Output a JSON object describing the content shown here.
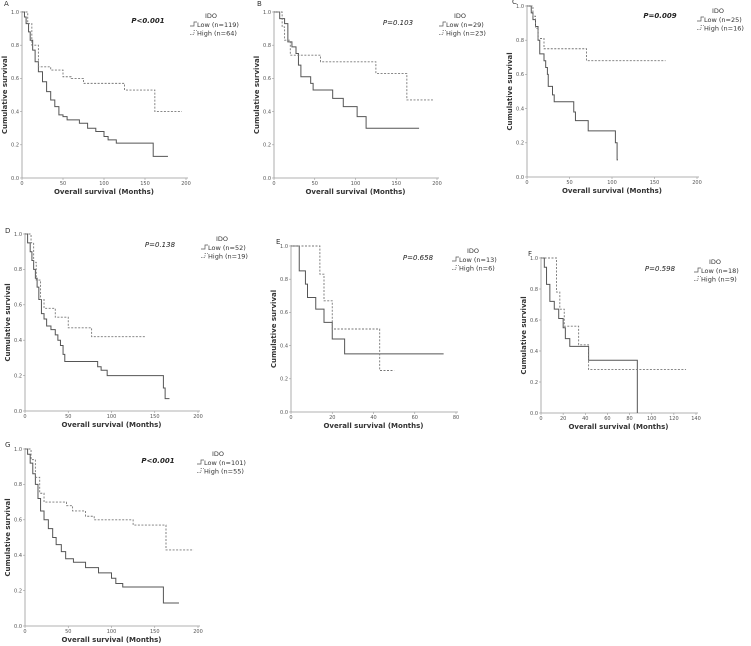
{
  "chart_data": [
    {
      "panel": "A",
      "type": "line",
      "step": true,
      "xlabel": "Overall survival (Months)",
      "ylabel": "Cumulative survival",
      "xlim": [
        0,
        200
      ],
      "ylim": [
        0,
        1
      ],
      "xticks": [
        0,
        50,
        100,
        150,
        200
      ],
      "yticks": [
        0.0,
        0.2,
        0.4,
        0.6,
        0.8,
        1.0
      ],
      "p_value": "P<0.001",
      "p_bold": true,
      "legend_title": "IDO",
      "series": [
        {
          "name": "Low (n=119)",
          "style": "solid",
          "points": [
            [
              0,
              1
            ],
            [
              3,
              0.97
            ],
            [
              5,
              0.93
            ],
            [
              8,
              0.88
            ],
            [
              10,
              0.83
            ],
            [
              13,
              0.77
            ],
            [
              16,
              0.7
            ],
            [
              20,
              0.64
            ],
            [
              25,
              0.58
            ],
            [
              30,
              0.52
            ],
            [
              35,
              0.47
            ],
            [
              40,
              0.43
            ],
            [
              45,
              0.38
            ],
            [
              50,
              0.37
            ],
            [
              55,
              0.35
            ],
            [
              70,
              0.33
            ],
            [
              80,
              0.3
            ],
            [
              90,
              0.28
            ],
            [
              100,
              0.25
            ],
            [
              105,
              0.23
            ],
            [
              115,
              0.21
            ],
            [
              160,
              0.13
            ],
            [
              178,
              0.13
            ]
          ]
        },
        {
          "name": "High (n=64)",
          "style": "dashed",
          "points": [
            [
              0,
              1
            ],
            [
              7,
              0.93
            ],
            [
              12,
              0.8
            ],
            [
              20,
              0.67
            ],
            [
              35,
              0.65
            ],
            [
              50,
              0.61
            ],
            [
              60,
              0.6
            ],
            [
              75,
              0.57
            ],
            [
              125,
              0.53
            ],
            [
              162,
              0.4
            ],
            [
              195,
              0.4
            ]
          ]
        }
      ]
    },
    {
      "panel": "B",
      "type": "line",
      "step": true,
      "xlabel": "Overall survival (Months)",
      "ylabel": "Cumulative survival",
      "xlim": [
        0,
        200
      ],
      "ylim": [
        0,
        1
      ],
      "xticks": [
        0,
        50,
        100,
        150,
        200
      ],
      "yticks": [
        0.0,
        0.2,
        0.4,
        0.6,
        0.8,
        1.0
      ],
      "p_value": "P=0.103",
      "p_bold": false,
      "legend_title": "IDO",
      "series": [
        {
          "name": "Low (n=29)",
          "style": "solid",
          "points": [
            [
              0,
              1
            ],
            [
              7,
              0.96
            ],
            [
              13,
              0.93
            ],
            [
              17,
              0.82
            ],
            [
              22,
              0.79
            ],
            [
              27,
              0.75
            ],
            [
              30,
              0.68
            ],
            [
              33,
              0.61
            ],
            [
              45,
              0.57
            ],
            [
              48,
              0.53
            ],
            [
              72,
              0.48
            ],
            [
              85,
              0.43
            ],
            [
              102,
              0.37
            ],
            [
              113,
              0.3
            ],
            [
              178,
              0.3
            ]
          ]
        },
        {
          "name": "High (n=23)",
          "style": "dashed",
          "points": [
            [
              0,
              1
            ],
            [
              10,
              0.91
            ],
            [
              13,
              0.83
            ],
            [
              20,
              0.74
            ],
            [
              57,
              0.7
            ],
            [
              125,
              0.63
            ],
            [
              163,
              0.47
            ],
            [
              195,
              0.47
            ]
          ]
        }
      ]
    },
    {
      "panel": "C",
      "type": "line",
      "step": true,
      "xlabel": "Overall survival (Months)",
      "ylabel": "Cumulative survival",
      "xlim": [
        0,
        200
      ],
      "ylim": [
        0,
        1
      ],
      "xticks": [
        0,
        50,
        100,
        150,
        200
      ],
      "yticks": [
        0.0,
        0.2,
        0.4,
        0.6,
        0.8,
        1.0
      ],
      "p_value": "P=0.009",
      "p_bold": true,
      "legend_title": "IDO",
      "series": [
        {
          "name": "Low (n=25)",
          "style": "solid",
          "points": [
            [
              0,
              1
            ],
            [
              5,
              0.96
            ],
            [
              7,
              0.92
            ],
            [
              10,
              0.88
            ],
            [
              13,
              0.8
            ],
            [
              15,
              0.72
            ],
            [
              20,
              0.68
            ],
            [
              22,
              0.64
            ],
            [
              24,
              0.6
            ],
            [
              25,
              0.53
            ],
            [
              30,
              0.48
            ],
            [
              32,
              0.44
            ],
            [
              55,
              0.38
            ],
            [
              57,
              0.33
            ],
            [
              72,
              0.27
            ],
            [
              104,
              0.2
            ],
            [
              106,
              0.1
            ],
            [
              107,
              0.1
            ]
          ]
        },
        {
          "name": "High (n=16)",
          "style": "dashed",
          "points": [
            [
              0,
              1
            ],
            [
              7,
              0.94
            ],
            [
              10,
              0.87
            ],
            [
              13,
              0.81
            ],
            [
              20,
              0.75
            ],
            [
              70,
              0.68
            ],
            [
              163,
              0.68
            ]
          ]
        }
      ]
    },
    {
      "panel": "D",
      "type": "line",
      "step": true,
      "xlabel": "Overall survival (Months)",
      "ylabel": "Cumulative survival",
      "xlim": [
        0,
        200
      ],
      "ylim": [
        0,
        1
      ],
      "xticks": [
        0,
        50,
        100,
        150,
        200
      ],
      "yticks": [
        0.0,
        0.2,
        0.4,
        0.6,
        0.8,
        1.0
      ],
      "p_value": "P=0.138",
      "p_bold": false,
      "legend_title": "IDO",
      "series": [
        {
          "name": "Low (n=52)",
          "style": "solid",
          "points": [
            [
              0,
              1
            ],
            [
              3,
              0.95
            ],
            [
              6,
              0.9
            ],
            [
              8,
              0.85
            ],
            [
              10,
              0.8
            ],
            [
              12,
              0.75
            ],
            [
              14,
              0.7
            ],
            [
              16,
              0.63
            ],
            [
              19,
              0.55
            ],
            [
              22,
              0.52
            ],
            [
              25,
              0.48
            ],
            [
              30,
              0.46
            ],
            [
              35,
              0.43
            ],
            [
              38,
              0.4
            ],
            [
              41,
              0.37
            ],
            [
              44,
              0.32
            ],
            [
              46,
              0.28
            ],
            [
              84,
              0.25
            ],
            [
              88,
              0.23
            ],
            [
              95,
              0.2
            ],
            [
              160,
              0.13
            ],
            [
              162,
              0.07
            ],
            [
              167,
              0.07
            ]
          ]
        },
        {
          "name": "High (n=19)",
          "style": "dashed",
          "points": [
            [
              0,
              1
            ],
            [
              7,
              0.95
            ],
            [
              10,
              0.84
            ],
            [
              13,
              0.74
            ],
            [
              18,
              0.63
            ],
            [
              22,
              0.58
            ],
            [
              35,
              0.53
            ],
            [
              50,
              0.47
            ],
            [
              77,
              0.42
            ],
            [
              140,
              0.42
            ]
          ]
        }
      ]
    },
    {
      "panel": "E",
      "type": "line",
      "step": true,
      "xlabel": "Overall survival (Months)",
      "ylabel": "Cumulative survival",
      "xlim": [
        0,
        80
      ],
      "ylim": [
        0,
        1
      ],
      "xticks": [
        0,
        20,
        40,
        60,
        80
      ],
      "yticks": [
        0.0,
        0.2,
        0.4,
        0.6,
        0.8,
        1.0
      ],
      "p_value": "P=0.658",
      "p_bold": false,
      "legend_title": "IDO",
      "series": [
        {
          "name": "Low (n=13)",
          "style": "solid",
          "points": [
            [
              0,
              1
            ],
            [
              4,
              0.85
            ],
            [
              7,
              0.77
            ],
            [
              8,
              0.69
            ],
            [
              12,
              0.62
            ],
            [
              16,
              0.54
            ],
            [
              20,
              0.44
            ],
            [
              26,
              0.35
            ],
            [
              74,
              0.35
            ]
          ]
        },
        {
          "name": "High (n=6)",
          "style": "dashed",
          "points": [
            [
              0,
              1
            ],
            [
              14,
              0.83
            ],
            [
              16,
              0.67
            ],
            [
              20,
              0.5
            ],
            [
              43,
              0.25
            ],
            [
              50,
              0.25
            ]
          ]
        }
      ]
    },
    {
      "panel": "F",
      "type": "line",
      "step": true,
      "xlabel": "Overall survival (Months)",
      "ylabel": "Cumulative survival",
      "xlim": [
        0,
        140
      ],
      "ylim": [
        0,
        1
      ],
      "xticks": [
        0,
        20,
        40,
        60,
        80,
        100,
        120,
        140
      ],
      "yticks": [
        0.0,
        0.2,
        0.4,
        0.6,
        0.8,
        1.0
      ],
      "p_value": "P=0.598",
      "p_bold": false,
      "legend_title": "IDO",
      "series": [
        {
          "name": "Low (n=18)",
          "style": "solid",
          "points": [
            [
              0,
              1
            ],
            [
              3,
              0.94
            ],
            [
              5,
              0.83
            ],
            [
              8,
              0.72
            ],
            [
              12,
              0.67
            ],
            [
              16,
              0.61
            ],
            [
              20,
              0.55
            ],
            [
              22,
              0.48
            ],
            [
              26,
              0.43
            ],
            [
              43,
              0.34
            ],
            [
              87,
              0
            ],
            [
              87,
              0
            ]
          ]
        },
        {
          "name": "High (n=9)",
          "style": "dashed",
          "points": [
            [
              0,
              1
            ],
            [
              14,
              0.78
            ],
            [
              17,
              0.67
            ],
            [
              21,
              0.56
            ],
            [
              34,
              0.44
            ],
            [
              43,
              0.28
            ],
            [
              131,
              0.28
            ]
          ]
        }
      ]
    },
    {
      "panel": "G",
      "type": "line",
      "step": true,
      "xlabel": "Overall survival (Months)",
      "ylabel": "Cumulative survival",
      "xlim": [
        0,
        200
      ],
      "ylim": [
        0,
        1
      ],
      "xticks": [
        0,
        50,
        100,
        150,
        200
      ],
      "yticks": [
        0.0,
        0.2,
        0.4,
        0.6,
        0.8,
        1.0
      ],
      "p_value": "P<0.001",
      "p_bold": true,
      "legend_title": "IDO",
      "series": [
        {
          "name": "Low (n=101)",
          "style": "solid",
          "points": [
            [
              0,
              1
            ],
            [
              3,
              0.97
            ],
            [
              6,
              0.92
            ],
            [
              9,
              0.86
            ],
            [
              12,
              0.8
            ],
            [
              15,
              0.72
            ],
            [
              18,
              0.65
            ],
            [
              22,
              0.6
            ],
            [
              27,
              0.55
            ],
            [
              32,
              0.5
            ],
            [
              36,
              0.46
            ],
            [
              42,
              0.42
            ],
            [
              47,
              0.38
            ],
            [
              56,
              0.36
            ],
            [
              70,
              0.33
            ],
            [
              85,
              0.3
            ],
            [
              100,
              0.27
            ],
            [
              105,
              0.24
            ],
            [
              113,
              0.22
            ],
            [
              160,
              0.13
            ],
            [
              178,
              0.13
            ]
          ]
        },
        {
          "name": "High (n=55)",
          "style": "dashed",
          "points": [
            [
              0,
              1
            ],
            [
              7,
              0.94
            ],
            [
              12,
              0.84
            ],
            [
              17,
              0.75
            ],
            [
              22,
              0.7
            ],
            [
              48,
              0.68
            ],
            [
              55,
              0.65
            ],
            [
              70,
              0.62
            ],
            [
              80,
              0.6
            ],
            [
              125,
              0.57
            ],
            [
              163,
              0.43
            ],
            [
              195,
              0.43
            ]
          ]
        }
      ]
    }
  ],
  "colors": {
    "low": "#555555",
    "high": "#777777",
    "axis": "#999999"
  }
}
